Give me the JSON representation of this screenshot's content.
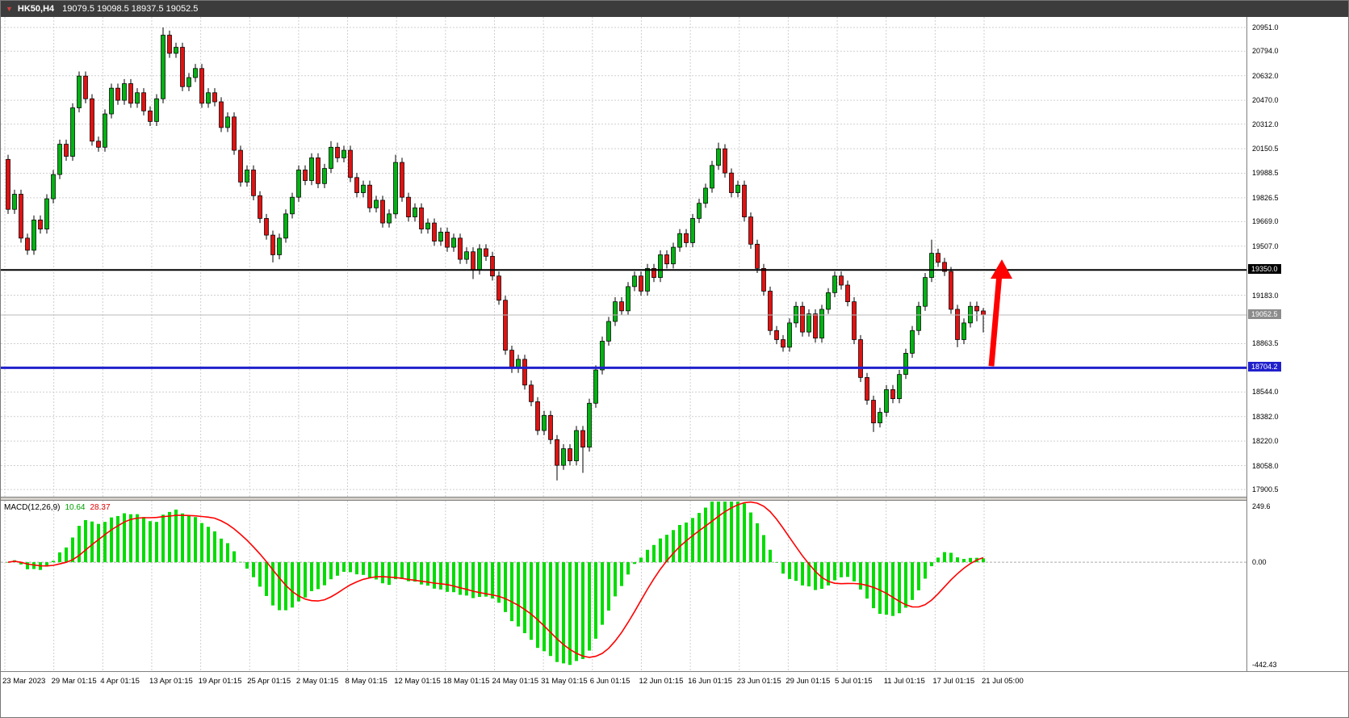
{
  "window": {
    "topbar": {
      "symbol_period": "HK50,H4",
      "ohlc": "19079.5 19098.5 18937.5 19052.5",
      "bg": "#3C3C3C"
    }
  },
  "colors": {
    "background": "#FFFFFF",
    "grid": "#CFCFCF",
    "candle_up": "#00B312",
    "candle_down": "#E11212",
    "candle_border": "#000000",
    "macd_histogram": "#00DC00",
    "macd_signal": "#FF0000",
    "hline_black": "#000000",
    "hline_blue": "#2020CC",
    "current_price_line": "#B8B8B8",
    "arrow": "#FF0000",
    "axis_text": "#000000"
  },
  "chart_data": [
    {
      "type": "candlestick",
      "title": "HK50,H4",
      "timeframe": "H4",
      "ylim": [
        17853,
        21020
      ],
      "grid": "dashed",
      "y_ticks": [
        "20951.0",
        "20794.0",
        "20632.0",
        "20470.0",
        "20312.0",
        "20150.5",
        "19988.5",
        "19826.5",
        "19669.0",
        "19507.0",
        "19183.0",
        "18863.5",
        "18544.0",
        "18382.0",
        "18220.0",
        "18058.0",
        "17900.5"
      ],
      "price_lines": [
        {
          "label": "19350.0",
          "price": 19350.0,
          "color": "#000000",
          "width": 2,
          "tag_bg": "#000000",
          "role": "resistance-line"
        },
        {
          "label": "19052.5",
          "price": 19052.5,
          "color": "#B8B8B8",
          "width": 1,
          "tag_bg": "#8C8C8C",
          "role": "current-price"
        },
        {
          "label": "18704.2",
          "price": 18704.2,
          "color": "#2020CC",
          "width": 3,
          "tag_bg": "#2020CC",
          "role": "support-line"
        }
      ],
      "x_labels": [
        "23 Mar 2023",
        "29 Mar 01:15",
        "4 Apr 01:15",
        "13 Apr 01:15",
        "19 Apr 01:15",
        "25 Apr 01:15",
        "2 May 01:15",
        "8 May 01:15",
        "12 May 01:15",
        "18 May 01:15",
        "24 May 01:15",
        "31 May 01:15",
        "6 Jun 01:15",
        "12 Jun 01:15",
        "16 Jun 01:15",
        "23 Jun 01:15",
        "29 Jun 01:15",
        "5 Jul 01:15",
        "11 Jul 01:15",
        "17 Jul 01:15",
        "21 Jul 05:00"
      ],
      "annotations": [
        {
          "type": "arrow-up",
          "color": "#FF0000",
          "from_price": 18704.2,
          "to_price": 19420
        }
      ],
      "candles": [
        [
          20080,
          20110,
          19720,
          19750
        ],
        [
          19750,
          19880,
          19720,
          19850
        ],
        [
          19850,
          19880,
          19530,
          19560
        ],
        [
          19560,
          19590,
          19450,
          19480
        ],
        [
          19480,
          19710,
          19450,
          19680
        ],
        [
          19680,
          19710,
          19590,
          19620
        ],
        [
          19620,
          19850,
          19590,
          19820
        ],
        [
          19820,
          20010,
          19790,
          19980
        ],
        [
          19980,
          20210,
          19950,
          20180
        ],
        [
          20180,
          20210,
          20070,
          20100
        ],
        [
          20100,
          20450,
          20070,
          20420
        ],
        [
          20420,
          20660,
          20390,
          20630
        ],
        [
          20630,
          20660,
          20450,
          20480
        ],
        [
          20480,
          20510,
          20170,
          20200
        ],
        [
          20200,
          20230,
          20130,
          20160
        ],
        [
          20160,
          20410,
          20130,
          20380
        ],
        [
          20380,
          20580,
          20350,
          20550
        ],
        [
          20550,
          20580,
          20440,
          20470
        ],
        [
          20470,
          20610,
          20440,
          20580
        ],
        [
          20580,
          20610,
          20420,
          20450
        ],
        [
          20450,
          20550,
          20420,
          20520
        ],
        [
          20520,
          20550,
          20370,
          20400
        ],
        [
          20400,
          20430,
          20300,
          20330
        ],
        [
          20330,
          20510,
          20300,
          20480
        ],
        [
          20480,
          20951,
          20450,
          20900
        ],
        [
          20900,
          20930,
          20750,
          20780
        ],
        [
          20780,
          20850,
          20750,
          20820
        ],
        [
          20820,
          20850,
          20530,
          20560
        ],
        [
          20560,
          20650,
          20530,
          20620
        ],
        [
          20620,
          20710,
          20590,
          20680
        ],
        [
          20680,
          20710,
          20420,
          20450
        ],
        [
          20450,
          20550,
          20420,
          20520
        ],
        [
          20520,
          20550,
          20430,
          20460
        ],
        [
          20460,
          20490,
          20260,
          20290
        ],
        [
          20290,
          20390,
          20260,
          20360
        ],
        [
          20360,
          20390,
          20110,
          20140
        ],
        [
          20140,
          20170,
          19900,
          19930
        ],
        [
          19930,
          20040,
          19900,
          20010
        ],
        [
          20010,
          20040,
          19810,
          19840
        ],
        [
          19840,
          19870,
          19660,
          19690
        ],
        [
          19690,
          19720,
          19550,
          19580
        ],
        [
          19580,
          19610,
          19400,
          19450
        ],
        [
          19450,
          19590,
          19420,
          19560
        ],
        [
          19560,
          19750,
          19530,
          19720
        ],
        [
          19720,
          19860,
          19690,
          19830
        ],
        [
          19830,
          20040,
          19800,
          20010
        ],
        [
          20010,
          20040,
          19910,
          19940
        ],
        [
          19940,
          20120,
          19910,
          20090
        ],
        [
          20090,
          20120,
          19890,
          19920
        ],
        [
          19920,
          20050,
          19890,
          20020
        ],
        [
          20020,
          20200,
          19990,
          20160
        ],
        [
          20160,
          20190,
          20060,
          20090
        ],
        [
          20090,
          20170,
          20060,
          20140
        ],
        [
          20140,
          20170,
          19930,
          19960
        ],
        [
          19960,
          19990,
          19830,
          19860
        ],
        [
          19860,
          19940,
          19830,
          19910
        ],
        [
          19910,
          19940,
          19730,
          19760
        ],
        [
          19760,
          19840,
          19730,
          19810
        ],
        [
          19810,
          19840,
          19630,
          19660
        ],
        [
          19660,
          19750,
          19630,
          19720
        ],
        [
          19720,
          20110,
          19690,
          20060
        ],
        [
          20060,
          20090,
          19800,
          19830
        ],
        [
          19830,
          19860,
          19670,
          19700
        ],
        [
          19700,
          19790,
          19670,
          19760
        ],
        [
          19760,
          19790,
          19590,
          19620
        ],
        [
          19620,
          19690,
          19590,
          19660
        ],
        [
          19660,
          19690,
          19510,
          19540
        ],
        [
          19540,
          19630,
          19510,
          19600
        ],
        [
          19600,
          19630,
          19470,
          19500
        ],
        [
          19500,
          19590,
          19470,
          19560
        ],
        [
          19560,
          19590,
          19390,
          19420
        ],
        [
          19420,
          19500,
          19390,
          19470
        ],
        [
          19470,
          19500,
          19290,
          19350
        ],
        [
          19350,
          19520,
          19320,
          19490
        ],
        [
          19490,
          19520,
          19410,
          19440
        ],
        [
          19440,
          19470,
          19280,
          19310
        ],
        [
          19310,
          19340,
          19120,
          19150
        ],
        [
          19150,
          19180,
          18790,
          18820
        ],
        [
          18820,
          18850,
          18670,
          18700
        ],
        [
          18700,
          18790,
          18670,
          18760
        ],
        [
          18760,
          18790,
          18560,
          18590
        ],
        [
          18590,
          18620,
          18450,
          18480
        ],
        [
          18480,
          18510,
          18260,
          18290
        ],
        [
          18290,
          18420,
          18260,
          18390
        ],
        [
          18390,
          18420,
          18200,
          18230
        ],
        [
          18230,
          18260,
          17960,
          18060
        ],
        [
          18060,
          18200,
          18030,
          18170
        ],
        [
          18170,
          18200,
          18060,
          18090
        ],
        [
          18090,
          18320,
          18060,
          18290
        ],
        [
          18290,
          18320,
          18010,
          18180
        ],
        [
          18180,
          18500,
          18150,
          18470
        ],
        [
          18470,
          18720,
          18440,
          18690
        ],
        [
          18690,
          18910,
          18660,
          18880
        ],
        [
          18880,
          19040,
          18850,
          19010
        ],
        [
          19010,
          19170,
          18980,
          19140
        ],
        [
          19140,
          19170,
          19050,
          19080
        ],
        [
          19080,
          19270,
          19050,
          19240
        ],
        [
          19240,
          19340,
          19210,
          19310
        ],
        [
          19310,
          19340,
          19180,
          19210
        ],
        [
          19210,
          19390,
          19180,
          19360
        ],
        [
          19360,
          19390,
          19270,
          19300
        ],
        [
          19300,
          19480,
          19270,
          19450
        ],
        [
          19450,
          19480,
          19360,
          19390
        ],
        [
          19390,
          19530,
          19360,
          19500
        ],
        [
          19500,
          19620,
          19470,
          19590
        ],
        [
          19590,
          19620,
          19500,
          19530
        ],
        [
          19530,
          19720,
          19500,
          19690
        ],
        [
          19690,
          19820,
          19660,
          19790
        ],
        [
          19790,
          19920,
          19760,
          19890
        ],
        [
          19890,
          20070,
          19860,
          20040
        ],
        [
          20040,
          20190,
          20010,
          20150
        ],
        [
          20150,
          20180,
          19960,
          19990
        ],
        [
          19990,
          20020,
          19830,
          19860
        ],
        [
          19860,
          19940,
          19830,
          19910
        ],
        [
          19910,
          19940,
          19670,
          19700
        ],
        [
          19700,
          19730,
          19490,
          19520
        ],
        [
          19520,
          19550,
          19330,
          19360
        ],
        [
          19360,
          19390,
          19180,
          19210
        ],
        [
          19210,
          19240,
          18920,
          18950
        ],
        [
          18950,
          18980,
          18860,
          18890
        ],
        [
          18890,
          18920,
          18810,
          18840
        ],
        [
          18840,
          19030,
          18810,
          19000
        ],
        [
          19000,
          19140,
          18970,
          19110
        ],
        [
          19110,
          19140,
          18910,
          18940
        ],
        [
          18940,
          19090,
          18910,
          19060
        ],
        [
          19060,
          19090,
          18870,
          18900
        ],
        [
          18900,
          19120,
          18870,
          19090
        ],
        [
          19090,
          19230,
          19060,
          19200
        ],
        [
          19200,
          19340,
          19170,
          19310
        ],
        [
          19310,
          19340,
          19220,
          19250
        ],
        [
          19250,
          19280,
          19110,
          19140
        ],
        [
          19140,
          19170,
          18860,
          18890
        ],
        [
          18890,
          18920,
          18610,
          18640
        ],
        [
          18640,
          18670,
          18460,
          18490
        ],
        [
          18490,
          18520,
          18280,
          18340
        ],
        [
          18340,
          18440,
          18310,
          18410
        ],
        [
          18410,
          18590,
          18380,
          18560
        ],
        [
          18560,
          18590,
          18470,
          18500
        ],
        [
          18500,
          18690,
          18470,
          18660
        ],
        [
          18660,
          18830,
          18630,
          18800
        ],
        [
          18800,
          18980,
          18770,
          18950
        ],
        [
          18950,
          19140,
          18920,
          19110
        ],
        [
          19110,
          19330,
          19080,
          19300
        ],
        [
          19300,
          19550,
          19270,
          19460
        ],
        [
          19460,
          19490,
          19370,
          19400
        ],
        [
          19400,
          19430,
          19310,
          19340
        ],
        [
          19340,
          19370,
          19060,
          19090
        ],
        [
          19090,
          19120,
          18840,
          18890
        ],
        [
          18890,
          19030,
          18860,
          19000
        ],
        [
          19000,
          19140,
          18970,
          19110
        ],
        [
          19110,
          19141,
          19011,
          19079.5
        ],
        [
          19079.5,
          19098.5,
          18937.5,
          19052.5
        ]
      ]
    },
    {
      "type": "macd",
      "label": "MACD(12,26,9)",
      "main_value": "10.64",
      "signal_value": "28.37",
      "params": {
        "fast": 12,
        "slow": 26,
        "signal": 9
      },
      "ylim": [
        -442.43,
        249.6
      ],
      "y_ticks": [
        "249.6",
        "0.00",
        "-442.43"
      ],
      "histogram_color": "#00DC00",
      "signal_color": "#FF0000"
    }
  ]
}
